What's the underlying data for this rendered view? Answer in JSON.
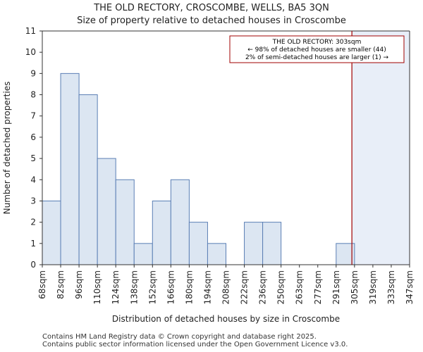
{
  "chart_data": {
    "type": "histogram",
    "title": "THE OLD RECTORY, CROSCOMBE, WELLS, BA5 3QN",
    "subtitle": "Size of property relative to detached houses in Croscombe",
    "xlabel": "Distribution of detached houses by size in Croscombe",
    "ylabel": "Number of detached properties",
    "ylim": [
      0,
      11
    ],
    "yticks": [
      0,
      1,
      2,
      3,
      4,
      5,
      6,
      7,
      8,
      9,
      10,
      11
    ],
    "bin_edges": [
      68,
      82,
      96,
      110,
      124,
      138,
      152,
      166,
      180,
      194,
      208,
      222,
      236,
      250,
      263,
      277,
      291,
      305,
      319,
      333,
      347
    ],
    "categories": [
      "68sqm",
      "82sqm",
      "96sqm",
      "110sqm",
      "124sqm",
      "138sqm",
      "152sqm",
      "166sqm",
      "180sqm",
      "194sqm",
      "208sqm",
      "222sqm",
      "236sqm",
      "250sqm",
      "263sqm",
      "277sqm",
      "291sqm",
      "305sqm",
      "319sqm",
      "333sqm",
      "347sqm"
    ],
    "values": [
      3,
      9,
      8,
      5,
      4,
      1,
      3,
      4,
      2,
      1,
      0,
      2,
      2,
      0,
      0,
      0,
      1,
      0,
      0,
      0
    ],
    "marker": {
      "value": 303,
      "label_lines": [
        "THE OLD RECTORY: 303sqm",
        "← 98% of detached houses are smaller (44)",
        "2% of semi-detached houses are larger (1) →"
      ]
    },
    "colors": {
      "bar_fill": "#dce6f2",
      "bar_edge": "#5b7fb5",
      "marker": "#a00000",
      "shade": "#e8eef8"
    }
  },
  "footer": {
    "line1": "Contains HM Land Registry data © Crown copyright and database right 2025.",
    "line2": "Contains public sector information licensed under the Open Government Licence v3.0."
  }
}
